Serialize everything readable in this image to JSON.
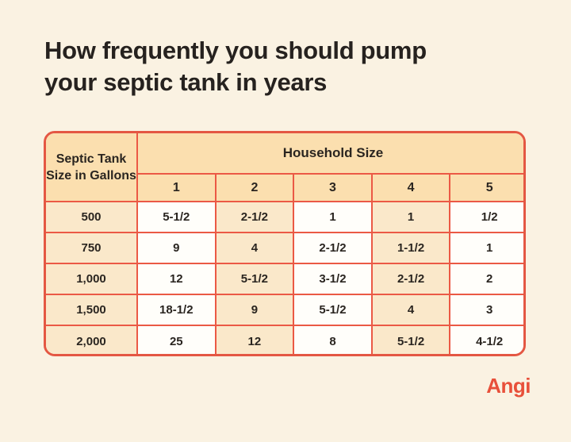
{
  "title": {
    "line1": "How frequently you should pump",
    "line2": "your septic tank in years"
  },
  "chart_data": {
    "type": "table",
    "title": "How frequently you should pump your septic tank in years",
    "row_header_label": "Septic Tank Size in Gallons",
    "column_group_label": "Household Size",
    "column_headers": [
      "1",
      "2",
      "3",
      "4",
      "5"
    ],
    "rows": [
      [
        "500",
        "5-1/2",
        "2-1/2",
        "1",
        "1",
        "1/2"
      ],
      [
        "750",
        "9",
        "4",
        "2-1/2",
        "1-1/2",
        "1"
      ],
      [
        "1,000",
        "12",
        "5-1/2",
        "3-1/2",
        "2-1/2",
        "2"
      ],
      [
        "1,500",
        "18-1/2",
        "9",
        "5-1/2",
        "4",
        "3"
      ],
      [
        "2,000",
        "25",
        "12",
        "8",
        "5-1/2",
        "4-1/2"
      ]
    ],
    "units": "years between pumping",
    "layout": {
      "header_fill": "#FBDFAF",
      "cell_fill_peach": "#FAE8CA",
      "cell_fill_white": "#FFFEFA",
      "border_color": "#E45743",
      "background": "#FAF2E2",
      "text_color": "#26221F"
    }
  },
  "brand": {
    "logo_text": "Angi",
    "logo_color": "#E8503A"
  }
}
